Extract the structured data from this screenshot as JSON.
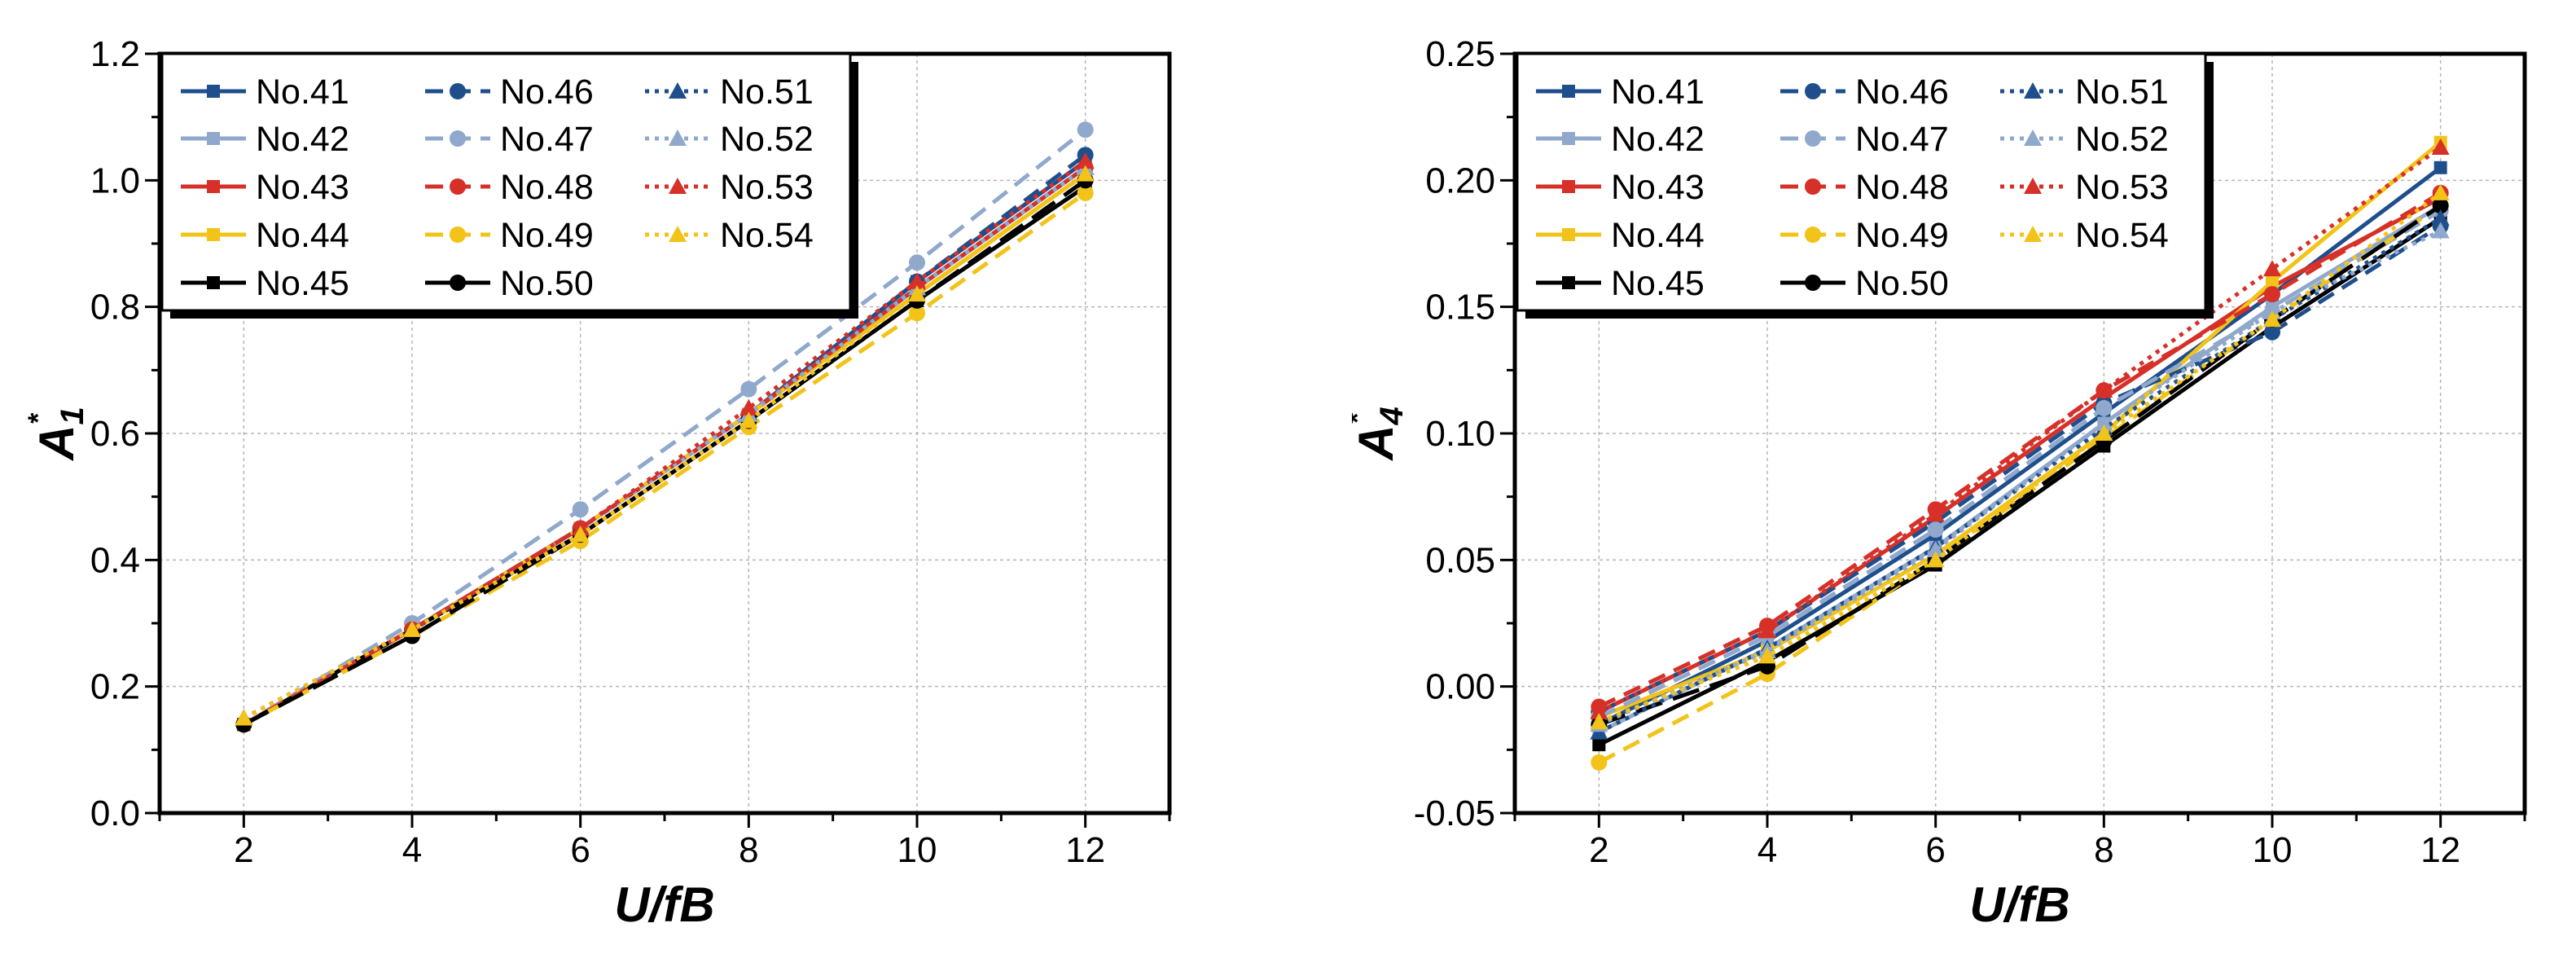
{
  "chart_data": [
    {
      "type": "line",
      "title": "",
      "xlabel": "U/fB",
      "ylabel": "A",
      "ylabel_sub": "1",
      "ylabel_sup": "*",
      "x": [
        2,
        4,
        6,
        8,
        10,
        12
      ],
      "xlim": [
        1,
        13
      ],
      "ylim": [
        0.0,
        1.2
      ],
      "xticks": [
        "2",
        "4",
        "6",
        "8",
        "10",
        "12"
      ],
      "yticks": [
        "0.0",
        "0.2",
        "0.4",
        "0.6",
        "0.8",
        "1.0",
        "1.2"
      ],
      "grid": true,
      "legend_position": "top-left",
      "series": [
        {
          "name": "No.41",
          "color": "#1f4e8c",
          "dash": "solid",
          "marker": "square",
          "values": [
            0.14,
            0.29,
            0.45,
            0.63,
            0.84,
            1.03
          ]
        },
        {
          "name": "No.42",
          "color": "#8fa8cc",
          "dash": "solid",
          "marker": "square",
          "values": [
            0.14,
            0.29,
            0.45,
            0.63,
            0.83,
            1.02
          ]
        },
        {
          "name": "No.43",
          "color": "#d63028",
          "dash": "solid",
          "marker": "square",
          "values": [
            0.14,
            0.29,
            0.45,
            0.63,
            0.83,
            1.02
          ]
        },
        {
          "name": "No.44",
          "color": "#f2c318",
          "dash": "solid",
          "marker": "square",
          "values": [
            0.14,
            0.29,
            0.45,
            0.63,
            0.82,
            1.01
          ]
        },
        {
          "name": "No.45",
          "color": "#000000",
          "dash": "solid",
          "marker": "square",
          "values": [
            0.14,
            0.29,
            0.44,
            0.62,
            0.81,
            0.99
          ]
        },
        {
          "name": "No.46",
          "color": "#1f4e8c",
          "dash": "dash",
          "marker": "circle",
          "values": [
            0.14,
            0.29,
            0.45,
            0.63,
            0.84,
            1.04
          ]
        },
        {
          "name": "No.47",
          "color": "#8fa8cc",
          "dash": "dash",
          "marker": "circle",
          "values": [
            0.14,
            0.3,
            0.48,
            0.67,
            0.87,
            1.08
          ]
        },
        {
          "name": "No.48",
          "color": "#d63028",
          "dash": "dash",
          "marker": "circle",
          "values": [
            0.14,
            0.29,
            0.45,
            0.63,
            0.83,
            1.02
          ]
        },
        {
          "name": "No.49",
          "color": "#f2c318",
          "dash": "dash",
          "marker": "circle",
          "values": [
            0.14,
            0.28,
            0.43,
            0.61,
            0.79,
            0.98
          ]
        },
        {
          "name": "No.50",
          "color": "#000000",
          "dash": "longdash",
          "marker": "circle",
          "values": [
            0.14,
            0.28,
            0.44,
            0.62,
            0.81,
            1.0
          ]
        },
        {
          "name": "No.51",
          "color": "#1f4e8c",
          "dash": "dot",
          "marker": "triangle",
          "values": [
            0.15,
            0.29,
            0.45,
            0.63,
            0.83,
            1.02
          ]
        },
        {
          "name": "No.52",
          "color": "#8fa8cc",
          "dash": "dot",
          "marker": "triangle",
          "values": [
            0.15,
            0.29,
            0.45,
            0.63,
            0.83,
            1.02
          ]
        },
        {
          "name": "No.53",
          "color": "#d63028",
          "dash": "dot",
          "marker": "triangle",
          "values": [
            0.15,
            0.29,
            0.45,
            0.64,
            0.84,
            1.03
          ]
        },
        {
          "name": "No.54",
          "color": "#f2c318",
          "dash": "dot",
          "marker": "triangle",
          "values": [
            0.15,
            0.29,
            0.44,
            0.62,
            0.82,
            1.01
          ]
        }
      ]
    },
    {
      "type": "line",
      "title": "",
      "xlabel": "U/fB",
      "ylabel": "A",
      "ylabel_sub": "4",
      "ylabel_sup": "*",
      "x": [
        2,
        4,
        6,
        8,
        10,
        12
      ],
      "xlim": [
        1,
        13
      ],
      "ylim": [
        -0.05,
        0.25
      ],
      "xticks": [
        "2",
        "4",
        "6",
        "8",
        "10",
        "12"
      ],
      "yticks": [
        "-0.05",
        "0.00",
        "0.05",
        "0.10",
        "0.15",
        "0.20",
        "0.25"
      ],
      "grid": true,
      "legend_position": "top-left",
      "series": [
        {
          "name": "No.41",
          "color": "#1f4e8c",
          "dash": "solid",
          "marker": "square",
          "values": [
            -0.015,
            0.018,
            0.06,
            0.108,
            0.155,
            0.205
          ]
        },
        {
          "name": "No.42",
          "color": "#8fa8cc",
          "dash": "solid",
          "marker": "square",
          "values": [
            -0.018,
            0.015,
            0.055,
            0.104,
            0.15,
            0.19
          ]
        },
        {
          "name": "No.43",
          "color": "#d63028",
          "dash": "solid",
          "marker": "square",
          "values": [
            -0.01,
            0.022,
            0.067,
            0.114,
            0.158,
            0.193
          ]
        },
        {
          "name": "No.44",
          "color": "#f2c318",
          "dash": "solid",
          "marker": "square",
          "values": [
            -0.012,
            0.014,
            0.052,
            0.1,
            0.16,
            0.215
          ]
        },
        {
          "name": "No.45",
          "color": "#000000",
          "dash": "solid",
          "marker": "square",
          "values": [
            -0.023,
            0.01,
            0.048,
            0.095,
            0.142,
            0.185
          ]
        },
        {
          "name": "No.46",
          "color": "#1f4e8c",
          "dash": "dash",
          "marker": "circle",
          "values": [
            -0.01,
            0.022,
            0.065,
            0.112,
            0.14,
            0.182
          ]
        },
        {
          "name": "No.47",
          "color": "#8fa8cc",
          "dash": "dash",
          "marker": "circle",
          "values": [
            -0.012,
            0.02,
            0.062,
            0.11,
            0.148,
            0.188
          ]
        },
        {
          "name": "No.48",
          "color": "#d63028",
          "dash": "dash",
          "marker": "circle",
          "values": [
            -0.008,
            0.024,
            0.07,
            0.117,
            0.155,
            0.195
          ]
        },
        {
          "name": "No.49",
          "color": "#f2c318",
          "dash": "dash",
          "marker": "circle",
          "values": [
            -0.03,
            0.005,
            0.05,
            0.098,
            0.145,
            0.19
          ]
        },
        {
          "name": "No.50",
          "color": "#000000",
          "dash": "longdash",
          "marker": "circle",
          "values": [
            -0.015,
            0.008,
            0.05,
            0.097,
            0.145,
            0.19
          ]
        },
        {
          "name": "No.51",
          "color": "#1f4e8c",
          "dash": "dot",
          "marker": "triangle",
          "values": [
            -0.018,
            0.015,
            0.055,
            0.102,
            0.145,
            0.185
          ]
        },
        {
          "name": "No.52",
          "color": "#8fa8cc",
          "dash": "dot",
          "marker": "triangle",
          "values": [
            -0.015,
            0.014,
            0.054,
            0.104,
            0.148,
            0.18
          ]
        },
        {
          "name": "No.53",
          "color": "#d63028",
          "dash": "dot",
          "marker": "triangle",
          "values": [
            -0.01,
            0.022,
            0.068,
            0.117,
            0.165,
            0.213
          ]
        },
        {
          "name": "No.54",
          "color": "#f2c318",
          "dash": "dot",
          "marker": "triangle",
          "values": [
            -0.014,
            0.012,
            0.05,
            0.1,
            0.145,
            0.195
          ]
        }
      ]
    }
  ]
}
